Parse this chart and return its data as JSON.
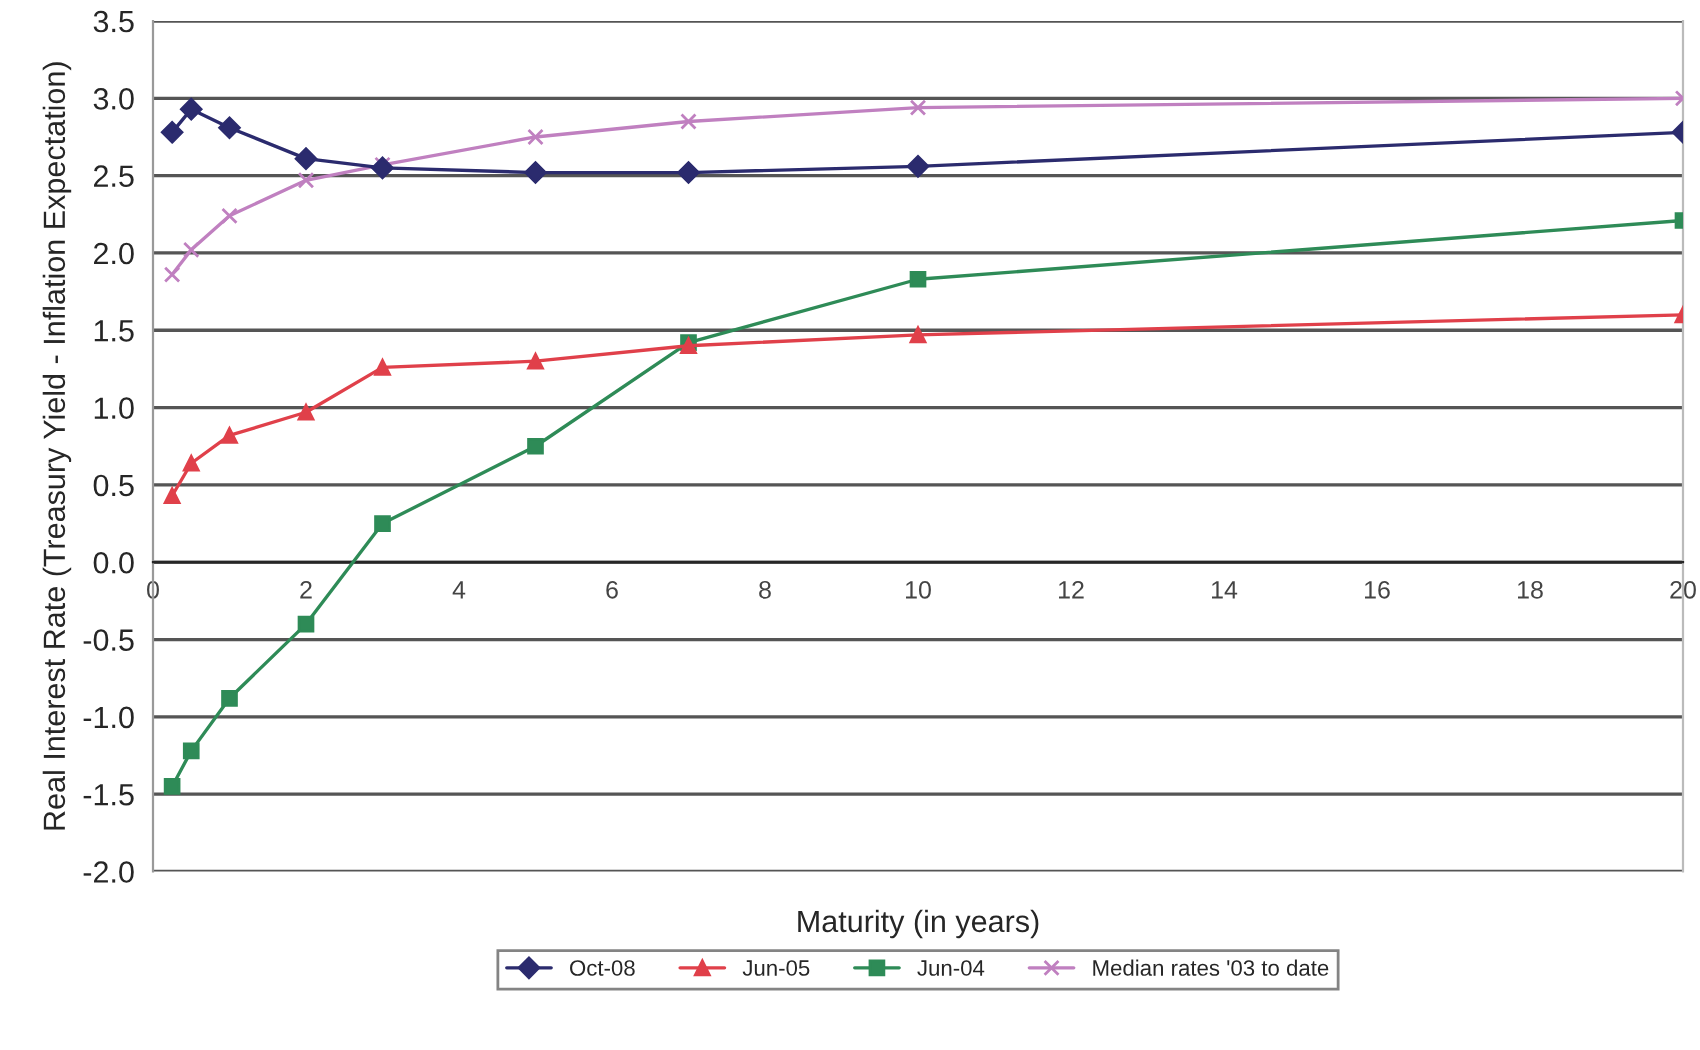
{
  "chart_data": {
    "type": "line",
    "xlabel": "Maturity (in years)",
    "ylabel": "Real Interest Rate (Treasury Yield - Inflation Expectation)",
    "xlim": [
      0,
      20
    ],
    "xticks": [
      0,
      2,
      4,
      6,
      8,
      10,
      12,
      14,
      16,
      18,
      20
    ],
    "ylim": [
      -2.0,
      3.5
    ],
    "yticks": [
      {
        "value": -2.0,
        "label": "-2.0"
      },
      {
        "value": -1.5,
        "label": "-1.5"
      },
      {
        "value": -1.0,
        "label": "-1.0"
      },
      {
        "value": -0.5,
        "label": "-0.5"
      },
      {
        "value": 0.0,
        "label": "0.0"
      },
      {
        "value": 0.5,
        "label": "0.5"
      },
      {
        "value": 1.0,
        "label": "1.0"
      },
      {
        "value": 1.5,
        "label": "1.5"
      },
      {
        "value": 2.0,
        "label": "2.0"
      },
      {
        "value": 2.5,
        "label": "2.5"
      },
      {
        "value": 3.0,
        "label": "3.0"
      },
      {
        "value": 3.5,
        "label": "3.5"
      }
    ],
    "grid": "y",
    "legend": "bottom",
    "x": [
      0.25,
      0.5,
      1,
      2,
      3,
      5,
      7,
      10,
      20
    ],
    "series": [
      {
        "name": "Oct-08",
        "color": "#2b2b6e",
        "marker": "diamond",
        "values": [
          2.78,
          2.93,
          2.81,
          2.61,
          2.55,
          2.52,
          2.52,
          2.56,
          2.78
        ]
      },
      {
        "name": "Jun-05",
        "color": "#e0404a",
        "marker": "triangle",
        "values": [
          0.43,
          0.64,
          0.82,
          0.97,
          1.26,
          1.3,
          1.4,
          1.47,
          1.6
        ]
      },
      {
        "name": "Jun-04",
        "color": "#2e8b57",
        "marker": "square",
        "values": [
          -1.45,
          -1.22,
          -0.88,
          -0.4,
          0.25,
          0.75,
          1.42,
          1.83,
          2.21
        ]
      },
      {
        "name": "Median rates '03 to date",
        "color": "#c080c0",
        "marker": "cross",
        "values": [
          1.86,
          2.02,
          2.24,
          2.47,
          2.57,
          2.75,
          2.85,
          2.94,
          3.0
        ]
      }
    ]
  }
}
